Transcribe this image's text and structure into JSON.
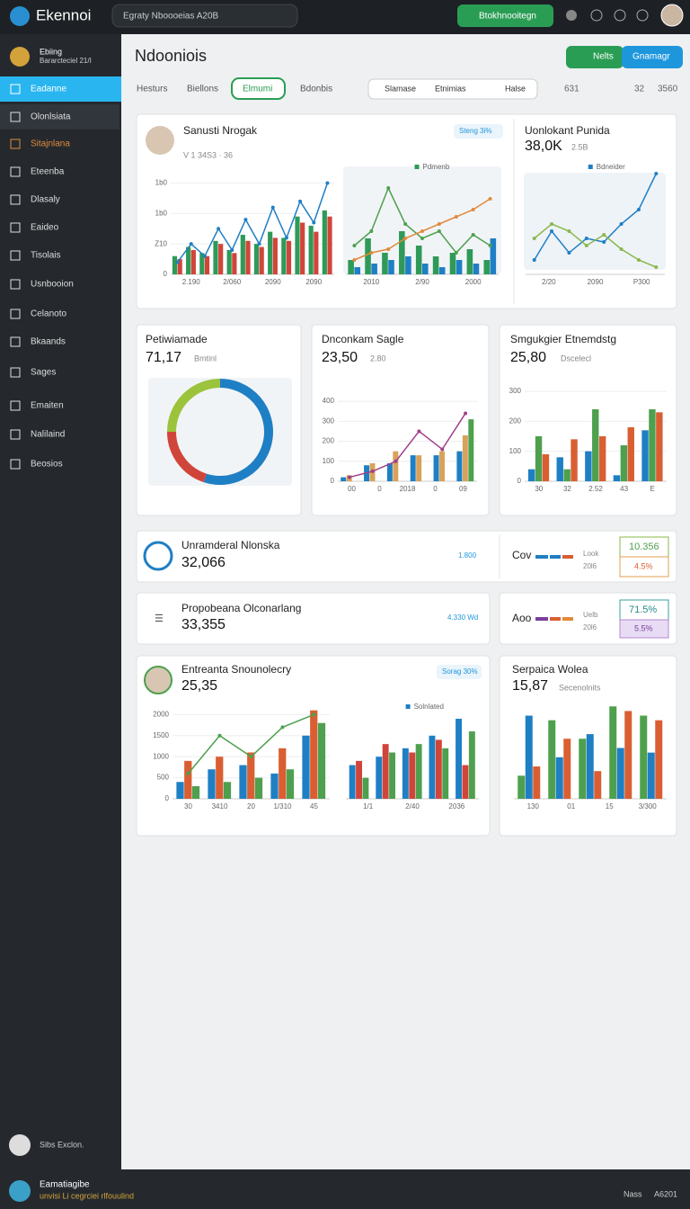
{
  "header": {
    "brand": "Ekennoi",
    "search": "Egraty Nboooeias A20B",
    "button": "Btokhnooitegn"
  },
  "sidebar": {
    "profile": {
      "name": "Ebiing",
      "sub": "Bararcteciel 21/I"
    },
    "items": [
      "Eadanne",
      "Olonlsiata",
      "Sitajnlana",
      "Eteenba",
      "Dlasaly",
      "Eaideo",
      "Tisolais",
      "Usnbooion",
      "Celanoto",
      "Bkaands",
      "Sages",
      "Emaiten",
      "Nalilaind",
      "Beosios"
    ],
    "footer": "Sibs Exclon."
  },
  "page": {
    "title": "Ndooniois",
    "buttons": [
      "Nelts",
      "Gnamagr"
    ],
    "tabs": [
      "Hesturs",
      "Biellons",
      "Elmumi",
      "Bdonbis"
    ],
    "filters": [
      "Slamase",
      "Etnimias",
      "Halse"
    ],
    "stats": [
      "631",
      "32",
      "3560"
    ]
  },
  "cards": [
    {
      "title": "Sanusti Nrogak",
      "sub": "V 1 34S3 · 36",
      "badge": "Steng 3i%",
      "side_title": "Uonlokant Punida",
      "side_value": "38,0K",
      "side_sub": "2.5B",
      "charts": [
        {
          "type": "line",
          "ylim": [
            0,
            170
          ],
          "yticks": [
            0,
            {
              "value": 50,
              "label": "Z10"
            },
            {
              "value": 100,
              "label": "1b0"
            },
            {
              "value": 150,
              "label": "1b0"
            }
          ],
          "xticks": [
            "2.190",
            "2/060",
            "2090",
            "2090"
          ],
          "series": [
            {
              "type": "bar",
              "color": "#2f9a57",
              "values": [
                30,
                45,
                35,
                55,
                40,
                65,
                50,
                70,
                60,
                95,
                80,
                105
              ]
            },
            {
              "type": "bar",
              "color": "#d0453a",
              "values": [
                25,
                40,
                30,
                50,
                35,
                55,
                45,
                60,
                55,
                85,
                70,
                95
              ]
            },
            {
              "type": "line",
              "color": "#1f7fc4",
              "values": [
                20,
                50,
                30,
                75,
                40,
                90,
                50,
                110,
                60,
                120,
                85,
                150
              ]
            }
          ]
        },
        {
          "type": "line",
          "ylim": [
            0,
            150
          ],
          "legend": "Pdmenb",
          "xticks": [
            "2010",
            "2/90",
            "2000"
          ],
          "series": [
            {
              "type": "bar",
              "color": "#2f9a57",
              "values": [
                20,
                50,
                30,
                60,
                40,
                25,
                30,
                35,
                20
              ]
            },
            {
              "type": "bar",
              "color": "#1f7fc4",
              "values": [
                10,
                15,
                20,
                25,
                15,
                10,
                20,
                15,
                50
              ]
            },
            {
              "type": "line",
              "color": "#4ea04e",
              "values": [
                40,
                60,
                120,
                70,
                50,
                60,
                30,
                55,
                40
              ]
            },
            {
              "type": "line",
              "color": "#e08a3c",
              "values": [
                20,
                30,
                35,
                50,
                60,
                70,
                80,
                90,
                105
              ]
            }
          ]
        },
        {
          "type": "line",
          "ylim": [
            0,
            150
          ],
          "legend": "Bdneider",
          "xticks": [
            "2/20",
            "2090",
            "P300"
          ],
          "series": [
            {
              "type": "line",
              "color": "#1f7fc4",
              "values": [
                20,
                60,
                30,
                50,
                45,
                70,
                90,
                140
              ]
            },
            {
              "type": "line",
              "color": "#8ab84a",
              "values": [
                50,
                70,
                60,
                40,
                55,
                35,
                20,
                10
              ]
            }
          ]
        }
      ]
    },
    {
      "title": "Petiwiamade",
      "value": "71,17",
      "sub": "Bmtinl",
      "chart": {
        "type": "pie",
        "values": [
          55,
          20,
          25
        ],
        "colors": [
          "#1f7fc4",
          "#d0453a",
          "#9bc33c"
        ]
      }
    },
    {
      "title": "Dnconkam Sagle",
      "value": "23,50",
      "sub": "2.80",
      "chart": {
        "type": "bar",
        "ylim": [
          0,
          450
        ],
        "yticks": [
          0,
          100,
          200,
          300,
          400
        ],
        "xticks": [
          "00",
          "0",
          "2018",
          "0",
          "09"
        ],
        "series": [
          {
            "type": "bar",
            "color": "#1f7fc4",
            "values": [
              20,
              80,
              90,
              130,
              130,
              150
            ]
          },
          {
            "type": "bar",
            "color": "#d8a25a",
            "values": [
              30,
              90,
              150,
              130,
              150,
              230
            ]
          },
          {
            "type": "bar",
            "color": "#4ea04e",
            "values": [
              0,
              0,
              0,
              0,
              0,
              310
            ]
          },
          {
            "type": "line",
            "color": "#a0408a",
            "values": [
              20,
              50,
              100,
              250,
              160,
              340
            ]
          }
        ]
      }
    },
    {
      "title": "Smgukgier Etnemdstg",
      "value": "25,80",
      "sub": "Dscelecl",
      "chart": {
        "type": "bar",
        "ylim": [
          0,
          300
        ],
        "yticks": [
          0,
          100,
          200,
          300
        ],
        "xticks": [
          "30",
          "32",
          "2.52",
          "43",
          "E"
        ],
        "series": [
          {
            "type": "bar",
            "color": "#1f7fc4",
            "values": [
              40,
              80,
              100,
              20,
              170
            ]
          },
          {
            "type": "bar",
            "color": "#4ea04e",
            "values": [
              150,
              40,
              240,
              120,
              240
            ]
          },
          {
            "type": "bar",
            "color": "#d95f33",
            "values": [
              90,
              140,
              150,
              180,
              230
            ]
          }
        ]
      }
    },
    {
      "title": "Unramderal Nlonska",
      "value": "32,066",
      "note": "1.800",
      "side_label": "Cov",
      "side_sub": [
        "Look",
        "20l6"
      ],
      "badges": [
        "10.356",
        "4.5%"
      ]
    },
    {
      "title": "Propobeana Olconarlang",
      "value": "33,355",
      "note": "4.330 Wd",
      "side_label": "Aoo",
      "side_sub": [
        "Uelb",
        "20l6"
      ],
      "badges": [
        "71.5%",
        "5.5%"
      ]
    },
    {
      "title": "Entreanta Snounolecry",
      "value": "25,35",
      "badge": "Sorag 30%",
      "charts": [
        {
          "type": "bar",
          "ylim": [
            0,
            2200
          ],
          "yticks": [
            0,
            500,
            1000,
            1500,
            2000
          ],
          "xticks": [
            "30",
            "3410",
            "20",
            "1/310",
            "45"
          ],
          "series": [
            {
              "type": "bar",
              "color": "#1f7fc4",
              "values": [
                400,
                700,
                800,
                600,
                1500
              ]
            },
            {
              "type": "bar",
              "color": "#d95f33",
              "values": [
                900,
                1000,
                1100,
                1200,
                2100
              ]
            },
            {
              "type": "bar",
              "color": "#4ea04e",
              "values": [
                300,
                400,
                500,
                700,
                1800
              ]
            },
            {
              "type": "line",
              "color": "#4ea04e",
              "values": [
                600,
                1500,
                1000,
                1700,
                2000
              ]
            }
          ]
        },
        {
          "type": "bar",
          "ylim": [
            0,
            2200
          ],
          "legend": "Solnlated",
          "xticks": [
            "1/1",
            "2/40",
            "2036"
          ],
          "series": [
            {
              "type": "bar",
              "color": "#1f7fc4",
              "values": [
                800,
                1000,
                1200,
                1500,
                1900
              ]
            },
            {
              "type": "bar",
              "color": "#d0453a",
              "values": [
                900,
                1300,
                1100,
                1400,
                800
              ]
            },
            {
              "type": "bar",
              "color": "#4ea04e",
              "values": [
                500,
                1100,
                1300,
                1200,
                1600
              ]
            }
          ]
        }
      ]
    },
    {
      "title": "Serpaica Wolea",
      "value": "15,87",
      "sub": "Secenolnits",
      "chart": {
        "type": "bar",
        "ylim": [
          0,
          2200
        ],
        "xticks": [
          "130",
          "01",
          "15",
          "3/300"
        ],
        "series": [
          {
            "type": "bar",
            "color": "#4ea04e",
            "values": [
              500,
              1700,
              1300,
              2000,
              1800
            ]
          },
          {
            "type": "bar",
            "color": "#1f7fc4",
            "values": [
              1800,
              900,
              1400,
              1100,
              1000
            ]
          },
          {
            "type": "bar",
            "color": "#d95f33",
            "values": [
              700,
              1300,
              600,
              1900,
              1700
            ]
          }
        ]
      }
    }
  ],
  "footer": {
    "title": "Eamatiagibe",
    "sub": "unvisi Li cegrciei rlfouulind",
    "right": [
      "Nass",
      "A6201"
    ]
  }
}
